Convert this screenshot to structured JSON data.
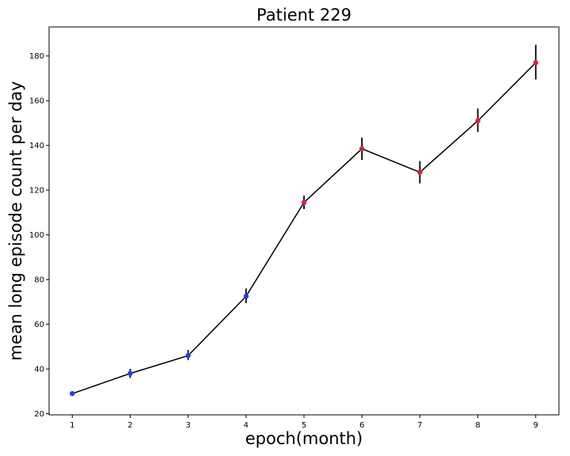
{
  "chart_data": {
    "type": "line",
    "title": "Patient 229",
    "xlabel": "epoch(month)",
    "ylabel": "mean long episode count per day",
    "xlim": [
      0.6,
      9.4
    ],
    "ylim": [
      19.5,
      193
    ],
    "grid": false,
    "xticks": [
      1,
      2,
      3,
      4,
      5,
      6,
      7,
      8,
      9
    ],
    "yticks": [
      20,
      40,
      60,
      80,
      100,
      120,
      140,
      160,
      180
    ],
    "line_color": "#000000",
    "errorbar_color": "#000000",
    "points": [
      {
        "x": 1,
        "y": 29,
        "err_low": 28,
        "err_high": 30,
        "color": "#1f3fe0"
      },
      {
        "x": 2,
        "y": 38,
        "err_low": 36,
        "err_high": 40,
        "color": "#1f3fe0"
      },
      {
        "x": 3,
        "y": 46,
        "err_low": 44,
        "err_high": 48.5,
        "color": "#1f3fe0"
      },
      {
        "x": 4,
        "y": 72.5,
        "err_low": 69.5,
        "err_high": 76,
        "color": "#1f3fe0"
      },
      {
        "x": 5,
        "y": 114.5,
        "err_low": 111.5,
        "err_high": 117.5,
        "color": "#d62040"
      },
      {
        "x": 6,
        "y": 138.5,
        "err_low": 133.5,
        "err_high": 143.5,
        "color": "#d62040"
      },
      {
        "x": 7,
        "y": 128,
        "err_low": 123,
        "err_high": 133,
        "color": "#d62040"
      },
      {
        "x": 8,
        "y": 151,
        "err_low": 146,
        "err_high": 156.5,
        "color": "#d62040"
      },
      {
        "x": 9,
        "y": 177,
        "err_low": 169.5,
        "err_high": 185,
        "color": "#d62040"
      }
    ]
  }
}
